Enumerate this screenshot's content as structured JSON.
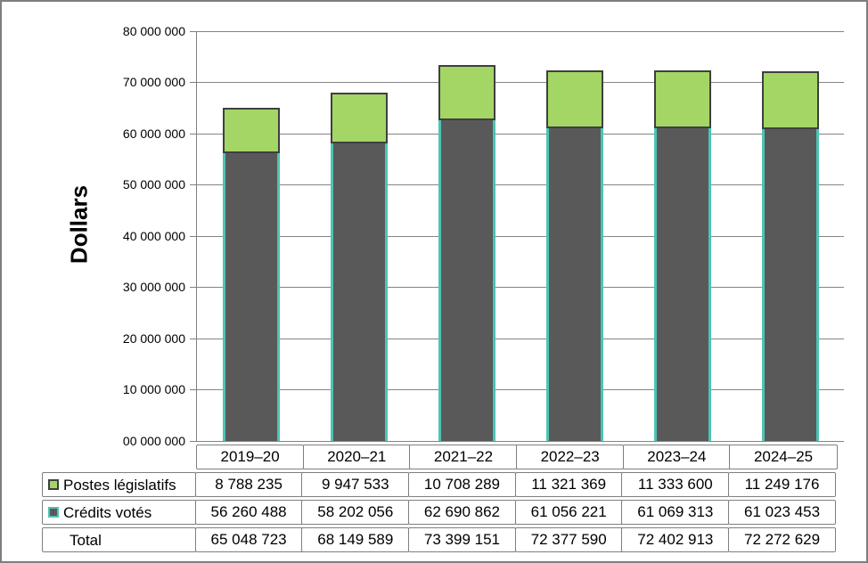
{
  "chart": {
    "y_axis_title": "Dollars",
    "y_ticks": [
      "80 000 000",
      "70 000 000",
      "60 000 000",
      "50 000 000",
      "40 000 000",
      "30 000 000",
      "20 000 000",
      "10 000 000",
      "00 000 000"
    ],
    "colors": {
      "postes_fill": "#a3d665",
      "postes_border": "#3f3f3f",
      "credits_fill": "#595959",
      "credits_edge": "#4ec3b4",
      "gridline": "#848484",
      "axis": "#7f7f7f",
      "table_border": "#7f7f7f"
    }
  },
  "chart_data": {
    "type": "bar",
    "stacked": true,
    "title": "",
    "xlabel": "",
    "ylabel": "Dollars",
    "ylim": [
      0,
      80000000
    ],
    "y_tick_step": 10000000,
    "grid": true,
    "legend_position": "table-rows-left",
    "categories": [
      "2019–20",
      "2020–21",
      "2021–22",
      "2022–23",
      "2023–24",
      "2024–25"
    ],
    "series": [
      {
        "name": "Postes législatifs",
        "color": "#a3d665",
        "values": [
          8788235,
          9947533,
          10708289,
          11321369,
          11333600,
          11249176
        ]
      },
      {
        "name": "Crédits votés",
        "color": "#595959",
        "values": [
          56260488,
          58202056,
          62690862,
          61056221,
          61069313,
          61023453
        ]
      }
    ],
    "totals": [
      65048723,
      68149589,
      73399151,
      72377590,
      72402913,
      72272629
    ]
  },
  "table": {
    "category_row": [
      "2019–20",
      "2020–21",
      "2021–22",
      "2022–23",
      "2023–24",
      "2024–25"
    ],
    "rows": [
      {
        "label": "Postes législatifs",
        "swatch": "postes",
        "values": [
          "8 788 235",
          "9 947 533",
          "10 708 289",
          "11 321 369",
          "11 333 600",
          "11 249 176"
        ]
      },
      {
        "label": "Crédits votés",
        "swatch": "credits",
        "values": [
          "56 260 488",
          "58 202 056",
          "62 690 862",
          "61 056 221",
          "61 069 313",
          "61 023 453"
        ]
      },
      {
        "label": "Total",
        "swatch": null,
        "values": [
          "65 048 723",
          "68 149 589",
          "73 399 151",
          "72 377 590",
          "72 402 913",
          "72 272 629"
        ]
      }
    ]
  }
}
